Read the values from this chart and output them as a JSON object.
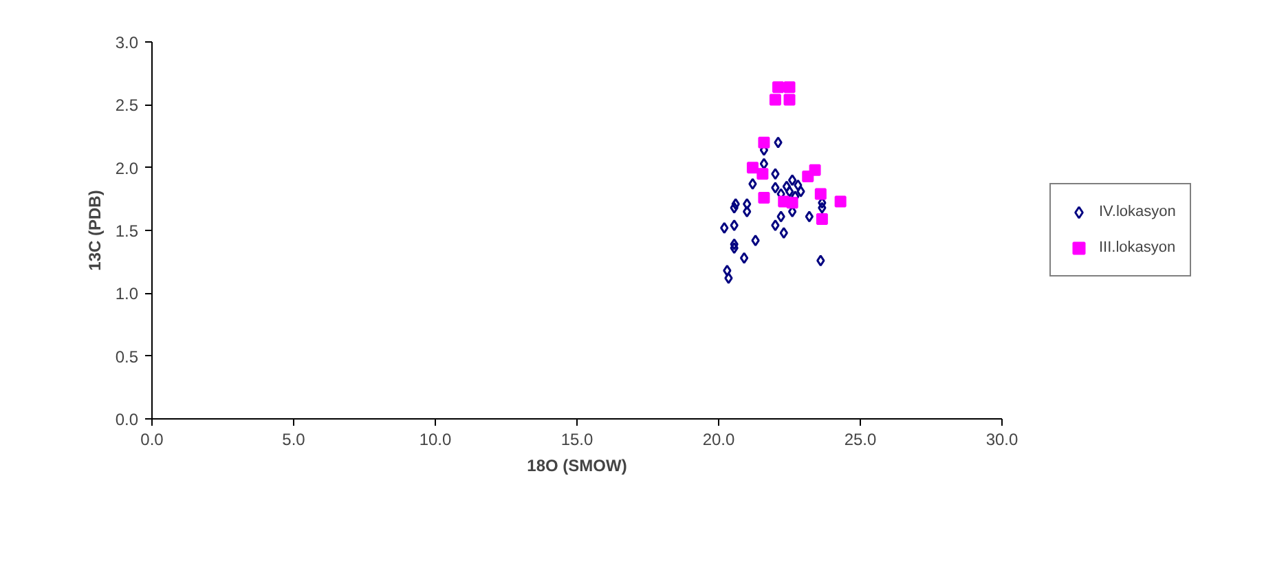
{
  "chart_data": {
    "type": "scatter",
    "xlabel": "18O (SMOW)",
    "ylabel": "13C (PDB)",
    "xlim": [
      0,
      30
    ],
    "ylim": [
      0,
      3
    ],
    "xticks": [
      {
        "value": 0,
        "label": "0.0"
      },
      {
        "value": 5,
        "label": "5.0"
      },
      {
        "value": 10,
        "label": "10.0"
      },
      {
        "value": 15,
        "label": "15.0"
      },
      {
        "value": 20,
        "label": "20.0"
      },
      {
        "value": 25,
        "label": "25.0"
      },
      {
        "value": 30,
        "label": "30.0"
      }
    ],
    "yticks": [
      {
        "value": 0,
        "label": "0.0"
      },
      {
        "value": 0.5,
        "label": "0.5"
      },
      {
        "value": 1,
        "label": "1.0"
      },
      {
        "value": 1.5,
        "label": "1.5"
      },
      {
        "value": 2,
        "label": "2.0"
      },
      {
        "value": 2.5,
        "label": "2.5"
      },
      {
        "value": 3,
        "label": "3.0"
      }
    ],
    "grid": false,
    "legend": "right",
    "series": [
      {
        "name": "IV.lokasyon",
        "color": "#000080",
        "marker": "diamond",
        "x": [
          22.1,
          21.6,
          21.6,
          21.2,
          22.0,
          22.6,
          22.4,
          22.8,
          22.5,
          22.9,
          22.0,
          22.2,
          22.7,
          20.6,
          21.0,
          23.65,
          23.2,
          23.65,
          22.6,
          20.55,
          21.0,
          20.2,
          20.55,
          22.2,
          22.0,
          22.3,
          21.3,
          20.55,
          20.55,
          20.9,
          23.6,
          20.3,
          20.35
        ],
        "values": [
          2.2,
          2.14,
          2.03,
          1.87,
          1.95,
          1.9,
          1.85,
          1.86,
          1.81,
          1.81,
          1.84,
          1.79,
          1.77,
          1.71,
          1.71,
          1.72,
          1.61,
          1.68,
          1.65,
          1.68,
          1.65,
          1.52,
          1.54,
          1.61,
          1.54,
          1.48,
          1.42,
          1.39,
          1.36,
          1.28,
          1.26,
          1.18,
          1.12
        ]
      },
      {
        "name": "III.lokasyon",
        "color": "#ff00ff",
        "marker": "square",
        "x": [
          22.1,
          22.5,
          22.0,
          22.5,
          21.6,
          21.2,
          21.55,
          23.4,
          23.15,
          21.6,
          23.6,
          22.3,
          22.6,
          24.3,
          23.65
        ],
        "values": [
          2.64,
          2.64,
          2.54,
          2.54,
          2.2,
          2.0,
          1.95,
          1.98,
          1.93,
          1.76,
          1.79,
          1.73,
          1.72,
          1.73,
          1.59
        ]
      }
    ]
  }
}
